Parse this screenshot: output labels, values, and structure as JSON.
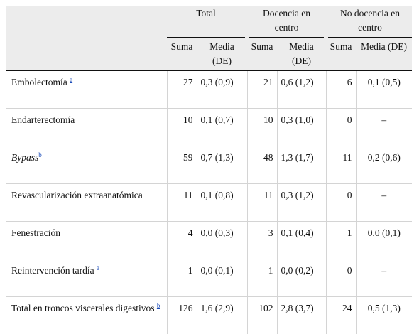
{
  "header": {
    "groups": [
      "Total",
      "Docencia en centro",
      "No docencia en centro"
    ],
    "sub": [
      "Suma",
      "Media (DE)"
    ]
  },
  "rows": [
    {
      "label": "Embolectomía",
      "italic": false,
      "note": "a",
      "t_sum": "27",
      "t_med": "0,3 (0,9)",
      "d_sum": "21",
      "d_med": "0,6 (1,2)",
      "n_sum": "6",
      "n_med": "0,1 (0,5)"
    },
    {
      "label": "Endarterectomía",
      "italic": false,
      "note": "",
      "t_sum": "10",
      "t_med": "0,1 (0,7)",
      "d_sum": "10",
      "d_med": "0,3 (1,0)",
      "n_sum": "0",
      "n_med": "–"
    },
    {
      "label": "Bypass",
      "italic": true,
      "note": "b",
      "t_sum": "59",
      "t_med": "0,7 (1,3)",
      "d_sum": "48",
      "d_med": "1,3 (1,7)",
      "n_sum": "11",
      "n_med": "0,2 (0,6)"
    },
    {
      "label": "Revascularización extraanatómica",
      "italic": false,
      "note": "",
      "t_sum": "11",
      "t_med": "0,1 (0,8)",
      "d_sum": "11",
      "d_med": "0,3 (1,2)",
      "n_sum": "0",
      "n_med": "–"
    },
    {
      "label": "Fenestración",
      "italic": false,
      "note": "",
      "t_sum": "4",
      "t_med": "0,0 (0,3)",
      "d_sum": "3",
      "d_med": "0,1 (0,4)",
      "n_sum": "1",
      "n_med": "0,0 (0,1)"
    },
    {
      "label": "Reintervención tardía",
      "italic": false,
      "note": "a",
      "t_sum": "1",
      "t_med": "0,0 (0,1)",
      "d_sum": "1",
      "d_med": "0,0 (0,2)",
      "n_sum": "0",
      "n_med": "–"
    },
    {
      "label": "Total en troncos viscerales digestivos",
      "italic": false,
      "note": "b",
      "t_sum": "126",
      "t_med": "1,6 (2,9)",
      "d_sum": "102",
      "d_med": "2,8 (3,7)",
      "n_sum": "24",
      "n_med": "0,5 (1,3)"
    }
  ]
}
